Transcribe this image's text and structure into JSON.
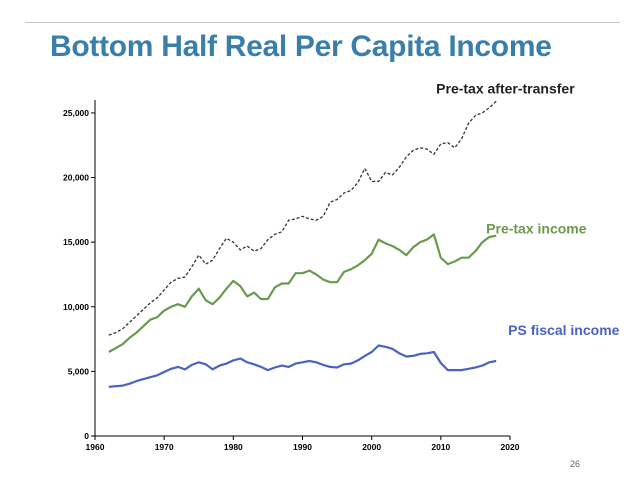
{
  "slide": {
    "title": "Bottom Half Real Per Capita Income",
    "page_number": "26"
  },
  "chart_data": {
    "type": "line",
    "title": "Bottom Half Real Per Capita Income",
    "xlabel": "",
    "ylabel": "",
    "xlim": [
      1960,
      2020
    ],
    "ylim": [
      0,
      26000
    ],
    "x_ticks": [
      1960,
      1970,
      1980,
      1990,
      2000,
      2010,
      2020
    ],
    "y_ticks": [
      0,
      5000,
      10000,
      15000,
      20000,
      25000
    ],
    "x_tick_labels": [
      "1960",
      "1970",
      "1980",
      "1990",
      "2000",
      "2010",
      "2020"
    ],
    "y_tick_labels": [
      "0",
      "5,000",
      "10,000",
      "15,000",
      "20,000",
      "25,000"
    ],
    "grid": false,
    "x": [
      1962,
      1963,
      1964,
      1965,
      1966,
      1967,
      1968,
      1969,
      1970,
      1971,
      1972,
      1973,
      1974,
      1975,
      1976,
      1977,
      1978,
      1979,
      1980,
      1981,
      1982,
      1983,
      1984,
      1985,
      1986,
      1987,
      1988,
      1989,
      1990,
      1991,
      1992,
      1993,
      1994,
      1995,
      1996,
      1997,
      1998,
      1999,
      2000,
      2001,
      2002,
      2003,
      2004,
      2005,
      2006,
      2007,
      2008,
      2009,
      2010,
      2011,
      2012,
      2013,
      2014,
      2015,
      2016,
      2017,
      2018
    ],
    "series": [
      {
        "name": "Pre-tax after-transfer",
        "label": "Pre-tax after-transfer",
        "color": "#333333",
        "dash": true,
        "values": [
          7800,
          8000,
          8300,
          8800,
          9300,
          9800,
          10300,
          10700,
          11300,
          11900,
          12200,
          12300,
          13100,
          14000,
          13300,
          13600,
          14500,
          15300,
          15000,
          14400,
          14700,
          14300,
          14500,
          15200,
          15600,
          15800,
          16700,
          16800,
          17000,
          16800,
          16700,
          17000,
          18100,
          18300,
          18800,
          19000,
          19600,
          20700,
          19700,
          19700,
          20400,
          20200,
          20800,
          21600,
          22100,
          22300,
          22200,
          21800,
          22600,
          22700,
          22300,
          23000,
          24200,
          24800,
          25000,
          25400,
          25900
        ]
      },
      {
        "name": "Pre-tax income",
        "label": "Pre-tax income",
        "color": "#6a9a4d",
        "dash": false,
        "values": [
          6500,
          6800,
          7100,
          7600,
          8000,
          8500,
          9000,
          9200,
          9700,
          10000,
          10200,
          10000,
          10800,
          11400,
          10500,
          10200,
          10700,
          11400,
          12000,
          11600,
          10800,
          11100,
          10600,
          10600,
          11500,
          11800,
          11800,
          12600,
          12600,
          12800,
          12500,
          12100,
          11900,
          11900,
          12700,
          12900,
          13200,
          13600,
          14100,
          15200,
          14900,
          14700,
          14400,
          14000,
          14600,
          15000,
          15200,
          15600,
          13800,
          13300,
          13500,
          13800,
          13800,
          14300,
          15000,
          15400,
          15500
        ]
      },
      {
        "name": "PS fiscal income",
        "label": "PS fiscal income",
        "color": "#4b63c0",
        "dash": false,
        "values": [
          3800,
          3850,
          3900,
          4050,
          4250,
          4400,
          4550,
          4700,
          4950,
          5200,
          5350,
          5150,
          5500,
          5700,
          5550,
          5150,
          5450,
          5600,
          5850,
          6000,
          5700,
          5550,
          5350,
          5100,
          5300,
          5450,
          5350,
          5600,
          5700,
          5800,
          5700,
          5500,
          5350,
          5300,
          5550,
          5600,
          5850,
          6200,
          6500,
          7000,
          6900,
          6750,
          6400,
          6150,
          6200,
          6350,
          6400,
          6500,
          5650,
          5100,
          5100,
          5100,
          5200,
          5300,
          5450,
          5700,
          5800
        ]
      }
    ]
  }
}
